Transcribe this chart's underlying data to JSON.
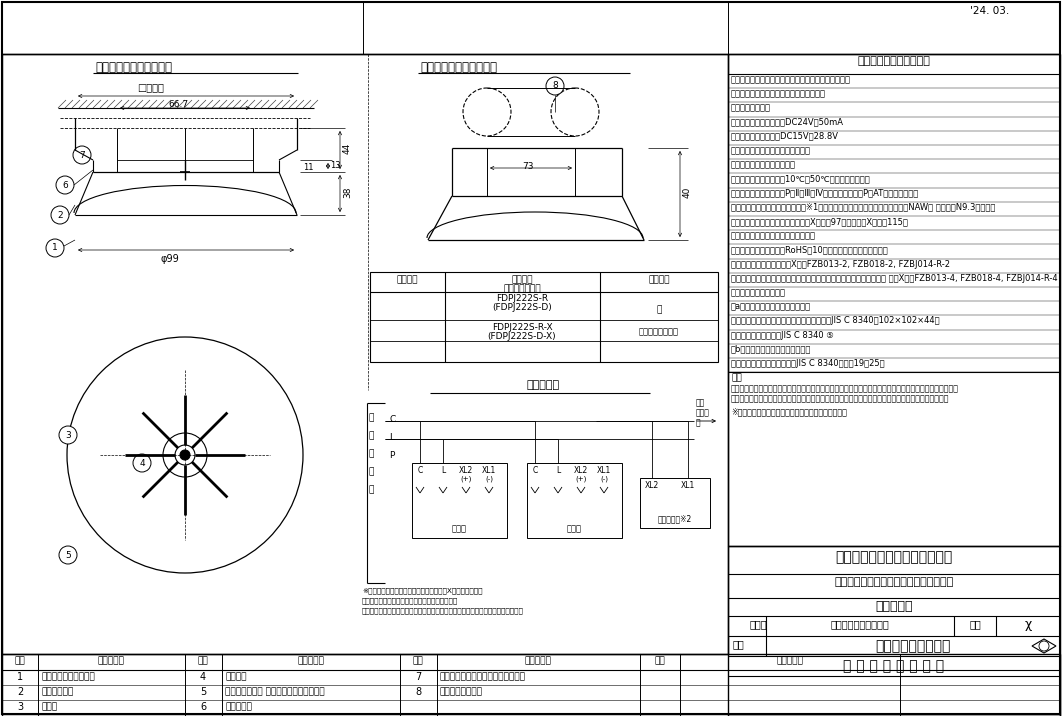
{
  "bg_color": "#ffffff",
  "title_date": "'24. 03.",
  "spec_title": "仕　　　　　　　　　様",
  "spec_items": [
    "（１）種別：差動式スポット型感知器（試験機能付）",
    "（２）国検型式番号：感第２０２３〜８号",
    "（３）感度：２種",
    "（４）定格電圧、電流：DC24V、50mA",
    "（５）使用電圧範囲：DC15V〜28.8V",
    "（６）確認灯：赤色発光ダイオード",
    "（７）感熱素子：サーミスタ",
    "（８）使用温度範囲：－10℃〜50℃（結露なきこと）",
    "（９）接続可能機器：進P／Ⅱ／Ⅲ／Ⅳシリーズ受信機、P－AT感知器用中継器",
    "（１０）主材：［本体、ベース（※1）］難燃性樹脂（ナチュラルホワイト（NAW） マンセルN9.3近似色）",
    "（１１）質量（ベース含む）：［－X無］約97ｇ　　［－X付］約115ｇ",
    "（１２）感知器ヘッド型名：左表参照",
    "（１３）環境負荷対応：RoHS（10物質）適合（感知器ヘッド）",
    "（１４）適合ベース：［－X型］FZB013-2, FZB018-2, FZBJ014-R-2",
    "　　　　　　　　　　　　　　　　　　　　　　　　　　　　　　　 ［－X付］FZB013-4, FZB018-4, FZBJ014-R-4"
  ],
  "spec_item15_title": "（１５）適合ボックス：",
  "spec_item15_a": "　a）埋込ボックスを使用する場合",
  "spec_item15_a1": "　　　中形四角アウトレットボックス浅形　JIS C 8340（102×102×44）",
  "spec_item15_a2": "　　　・塗代カバー　JIS C 8340 ⑤",
  "spec_item15_b": "　b）露出ボックスを使用する場合",
  "spec_item15_b1": "　　　・丸形露出ボックス　JIS C 8340（呼び19、25）",
  "spec_biko": "備考",
  "spec_note1": "（注）エアコン等の温風が原因で動作する場合がありますので、影響を受けない場所へ設置してください。",
  "spec_note2": "（注）火災検出できない可能性があるため、感知器の周囲に障害となるものを設置しないでください。",
  "spec_note3": "※１　ベースの色がライトグレーの場合があります。",
  "title_series": "ＦＤＰＪ２２２Ｓ－Ｒシリーズ",
  "title_sensor": "差動式スポット型感知器（試験機能付）",
  "title_type": "露　出　型",
  "issue_label": "発　行",
  "issue_dept": "第１技術部火報管理課",
  "scale_label": "縮尺",
  "scale_value": "χ",
  "drawing_label": "図番",
  "drawing_number": "ＦＤＰＪ６０４５０",
  "company": "能 美 防 災 株 式 会 社",
  "label_umekomu": "埋込ボックス使用の場合",
  "label_roshutsu": "露出ボックス使用の場合",
  "table_header0": "使用機器",
  "table_header1": "組品型名",
  "table_header1b": "（ヘッド型名）",
  "table_header2": "付属回路",
  "table_r1c1": "FDPJ222S-R",
  "table_r1c1b": "(FDPJ222S-D)",
  "table_r1c2": "－",
  "table_r2c1": "FDPJ222S-R-X",
  "table_r2c1b": "(FDPJ222S-D-X)",
  "table_r2c2": "室外表示灯回路付",
  "setsuzo_title": "接　続　図",
  "next_sensor": "次の感知器へ",
  "CLP_labels": [
    "C",
    "L",
    "P"
  ],
  "sensor_labels": [
    "C",
    "L",
    "XL2",
    "XL1",
    "(+)",
    "(-)"
  ],
  "sensor_text": "感知器",
  "gaito_text": "室外表示灯※2",
  "note2": "※２　室外表示灯または移報アダプタ（－X型感知器のみ）",
  "note2b": "　　　室外表示灯の接続は極性に注意願います。",
  "note2c": "　　　移報アダプタの接続については、各移報アダプタの資料をご参照ください。",
  "P_receiver": "Ｐ型受信機",
  "parts_col_headers": [
    "番号",
    "名　　　称",
    "番号",
    "名　　　称",
    "番号",
    "名　　　称",
    "番号",
    "名　　　称"
  ],
  "parts_rows": [
    [
      "1",
      "感知器ヘッド（本体）",
      "4",
      "感熱素子",
      "7",
      "中形四角アウトレットボックス浅形",
      "",
      ""
    ],
    [
      "2",
      "露出型ベース",
      "5",
      "種別表示シール 金・白・灰輪（切込有）",
      "8",
      "丸形露出ボックス",
      "",
      ""
    ],
    [
      "3",
      "確認灯",
      "6",
      "塗代カバー",
      "",
      "",
      "",
      ""
    ]
  ],
  "dim_102": "□１０２",
  "dim_66_7": "66.7",
  "dim_44": "44",
  "dim_13": "13",
  "dim_11": "11",
  "dim_38": "38",
  "dim_99": "φ99",
  "dim_73": "73",
  "dim_40": "40"
}
